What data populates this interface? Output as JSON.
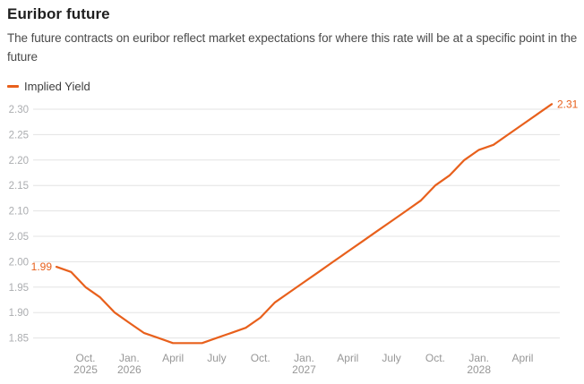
{
  "header": {
    "title": "Euribor future",
    "subtitle": "The future contracts on euribor reflect market expectations for where this rate will be at a specific point in the future"
  },
  "legend": {
    "label": "Implied Yield"
  },
  "colors": {
    "line": "#e8601c",
    "grid": "#e3e3e3",
    "y_tick_label": "#abadb0",
    "x_tick_label": "#979797",
    "title": "#1f1f1f",
    "subtitle": "#4b4b4b"
  },
  "chart_data": {
    "type": "line",
    "title": "Euribor future",
    "series_name": "Implied Yield",
    "legend_position": "top-left",
    "grid": "horizontal",
    "xlabel": "",
    "ylabel": "",
    "ylim": [
      1.83,
      2.32
    ],
    "x": [
      "Aug 2025",
      "Sep 2025",
      "Oct 2025",
      "Nov 2025",
      "Dec 2025",
      "Jan 2026",
      "Feb 2026",
      "Mar 2026",
      "Apr 2026",
      "May 2026",
      "Jun 2026",
      "Jul 2026",
      "Aug 2026",
      "Sep 2026",
      "Oct 2026",
      "Nov 2026",
      "Dec 2026",
      "Jan 2027",
      "Feb 2027",
      "Mar 2027",
      "Apr 2027",
      "May 2027",
      "Jun 2027",
      "Jul 2027",
      "Aug 2027",
      "Sep 2027",
      "Oct 2027",
      "Nov 2027",
      "Dec 2027",
      "Jan 2028",
      "Feb 2028",
      "Mar 2028",
      "Apr 2028",
      "May 2028",
      "Jun 2028"
    ],
    "values": [
      1.99,
      1.98,
      1.95,
      1.93,
      1.9,
      1.88,
      1.86,
      1.85,
      1.84,
      1.84,
      1.84,
      1.85,
      1.86,
      1.87,
      1.89,
      1.92,
      1.94,
      1.96,
      1.98,
      2.0,
      2.02,
      2.04,
      2.06,
      2.08,
      2.1,
      2.12,
      2.15,
      2.17,
      2.2,
      2.22,
      2.23,
      2.25,
      2.27,
      2.29,
      2.31
    ],
    "ytick_labels": [
      "2.30",
      "2.25",
      "2.20",
      "2.15",
      "2.10",
      "2.05",
      "2.00",
      "1.95",
      "1.90",
      "1.85"
    ],
    "xticks": [
      {
        "month_index": 2,
        "line1": "Oct.",
        "line2": "2025"
      },
      {
        "month_index": 5,
        "line1": "Jan.",
        "line2": "2026"
      },
      {
        "month_index": 8,
        "line1": "April",
        "line2": ""
      },
      {
        "month_index": 11,
        "line1": "July",
        "line2": ""
      },
      {
        "month_index": 14,
        "line1": "Oct.",
        "line2": ""
      },
      {
        "month_index": 17,
        "line1": "Jan.",
        "line2": "2027"
      },
      {
        "month_index": 20,
        "line1": "April",
        "line2": ""
      },
      {
        "month_index": 23,
        "line1": "July",
        "line2": ""
      },
      {
        "month_index": 26,
        "line1": "Oct.",
        "line2": ""
      },
      {
        "month_index": 29,
        "line1": "Jan.",
        "line2": "2028"
      },
      {
        "month_index": 32,
        "line1": "April",
        "line2": ""
      }
    ],
    "first_point_label": "1.99",
    "last_point_label": "2.31"
  }
}
